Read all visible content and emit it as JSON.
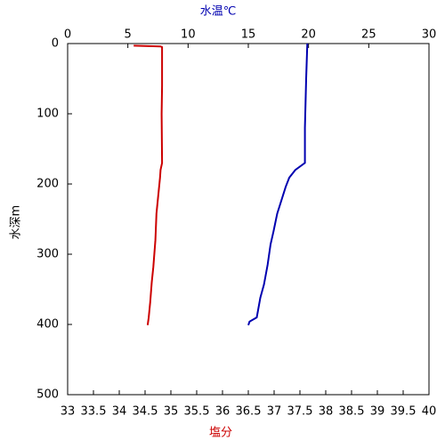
{
  "chart_data": {
    "type": "profile",
    "x_label": "塩分",
    "x2_label": "水温℃",
    "y_label": "水深m",
    "xlim": [
      33,
      40
    ],
    "xticks": [
      33,
      33.5,
      34,
      34.5,
      35,
      35.5,
      36,
      36.5,
      37,
      37.5,
      38,
      38.5,
      39,
      39.5,
      40
    ],
    "x2lim": [
      0,
      30
    ],
    "x2ticks": [
      0,
      5,
      10,
      15,
      20,
      25,
      30
    ],
    "ylim": [
      0,
      500
    ],
    "yticks": [
      0,
      100,
      200,
      300,
      400,
      500
    ],
    "y_inverted": true,
    "series": [
      {
        "axis": "x2",
        "color": "#0000b0",
        "x": [
          19.9,
          19.8,
          19.7,
          19.7,
          18.9,
          18.4,
          18.1,
          17.4,
          17.1,
          16.85,
          16.6,
          16.3,
          16.0,
          15.7,
          15.1,
          15.0
        ],
        "y": [
          0,
          50,
          120,
          170,
          180,
          191,
          204,
          242,
          267,
          286,
          315,
          343,
          362,
          390,
          396,
          401
        ]
      },
      {
        "axis": "x",
        "color": "#cc0000",
        "x": [
          34.28,
          34.8,
          34.83,
          34.83,
          34.82,
          34.83,
          34.8,
          34.79,
          34.72,
          34.7,
          34.66,
          34.63,
          34.6,
          34.57,
          34.55
        ],
        "y": [
          3,
          4,
          5,
          60,
          100,
          170,
          180,
          191,
          242,
          280,
          318,
          340,
          368,
          390,
          401
        ]
      }
    ]
  }
}
